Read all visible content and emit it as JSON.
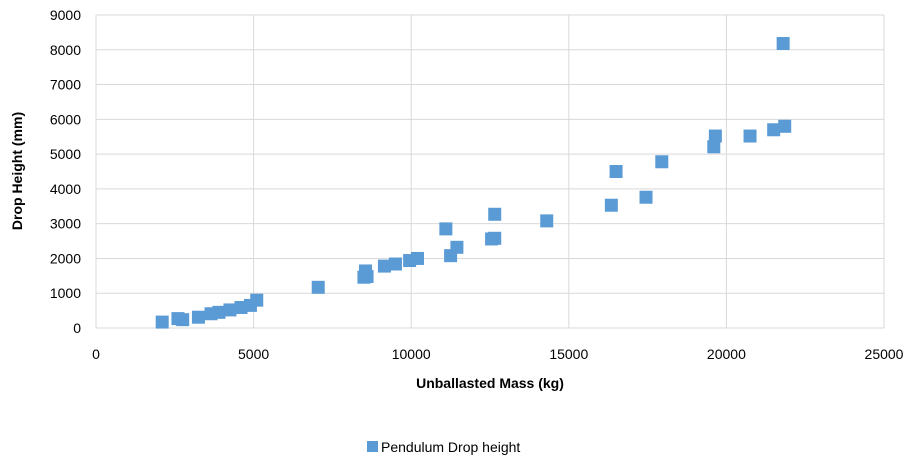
{
  "chart_data": {
    "type": "scatter",
    "title": "",
    "xlabel": "Unballasted Mass (kg)",
    "ylabel": "Drop Height (mm)",
    "xlim": [
      0,
      25000
    ],
    "ylim": [
      0,
      9000
    ],
    "x_ticks": [
      "0",
      "5000",
      "10000",
      "15000",
      "20000",
      "25000"
    ],
    "y_ticks": [
      "0",
      "1000",
      "2000",
      "3000",
      "4000",
      "5000",
      "6000",
      "7000",
      "8000",
      "9000"
    ],
    "grid": true,
    "legend_position": "bottom",
    "marker_color": "#5B9BD5",
    "series": [
      {
        "name": "Pendulum Drop height",
        "points": [
          [
            2100,
            170
          ],
          [
            2600,
            270
          ],
          [
            2750,
            240
          ],
          [
            3250,
            310
          ],
          [
            3650,
            410
          ],
          [
            3900,
            450
          ],
          [
            4250,
            520
          ],
          [
            4600,
            590
          ],
          [
            4900,
            650
          ],
          [
            5100,
            800
          ],
          [
            7050,
            1170
          ],
          [
            8500,
            1460
          ],
          [
            8550,
            1640
          ],
          [
            8600,
            1480
          ],
          [
            9150,
            1780
          ],
          [
            9500,
            1840
          ],
          [
            9950,
            1940
          ],
          [
            10200,
            2000
          ],
          [
            11100,
            2850
          ],
          [
            11250,
            2080
          ],
          [
            11450,
            2320
          ],
          [
            12550,
            2560
          ],
          [
            12650,
            2580
          ],
          [
            12650,
            3270
          ],
          [
            14300,
            3080
          ],
          [
            16350,
            3530
          ],
          [
            16500,
            4500
          ],
          [
            17450,
            3760
          ],
          [
            17950,
            4780
          ],
          [
            19600,
            5210
          ],
          [
            19650,
            5520
          ],
          [
            20750,
            5520
          ],
          [
            21500,
            5700
          ],
          [
            21850,
            5800
          ],
          [
            21800,
            8180
          ]
        ]
      }
    ]
  }
}
